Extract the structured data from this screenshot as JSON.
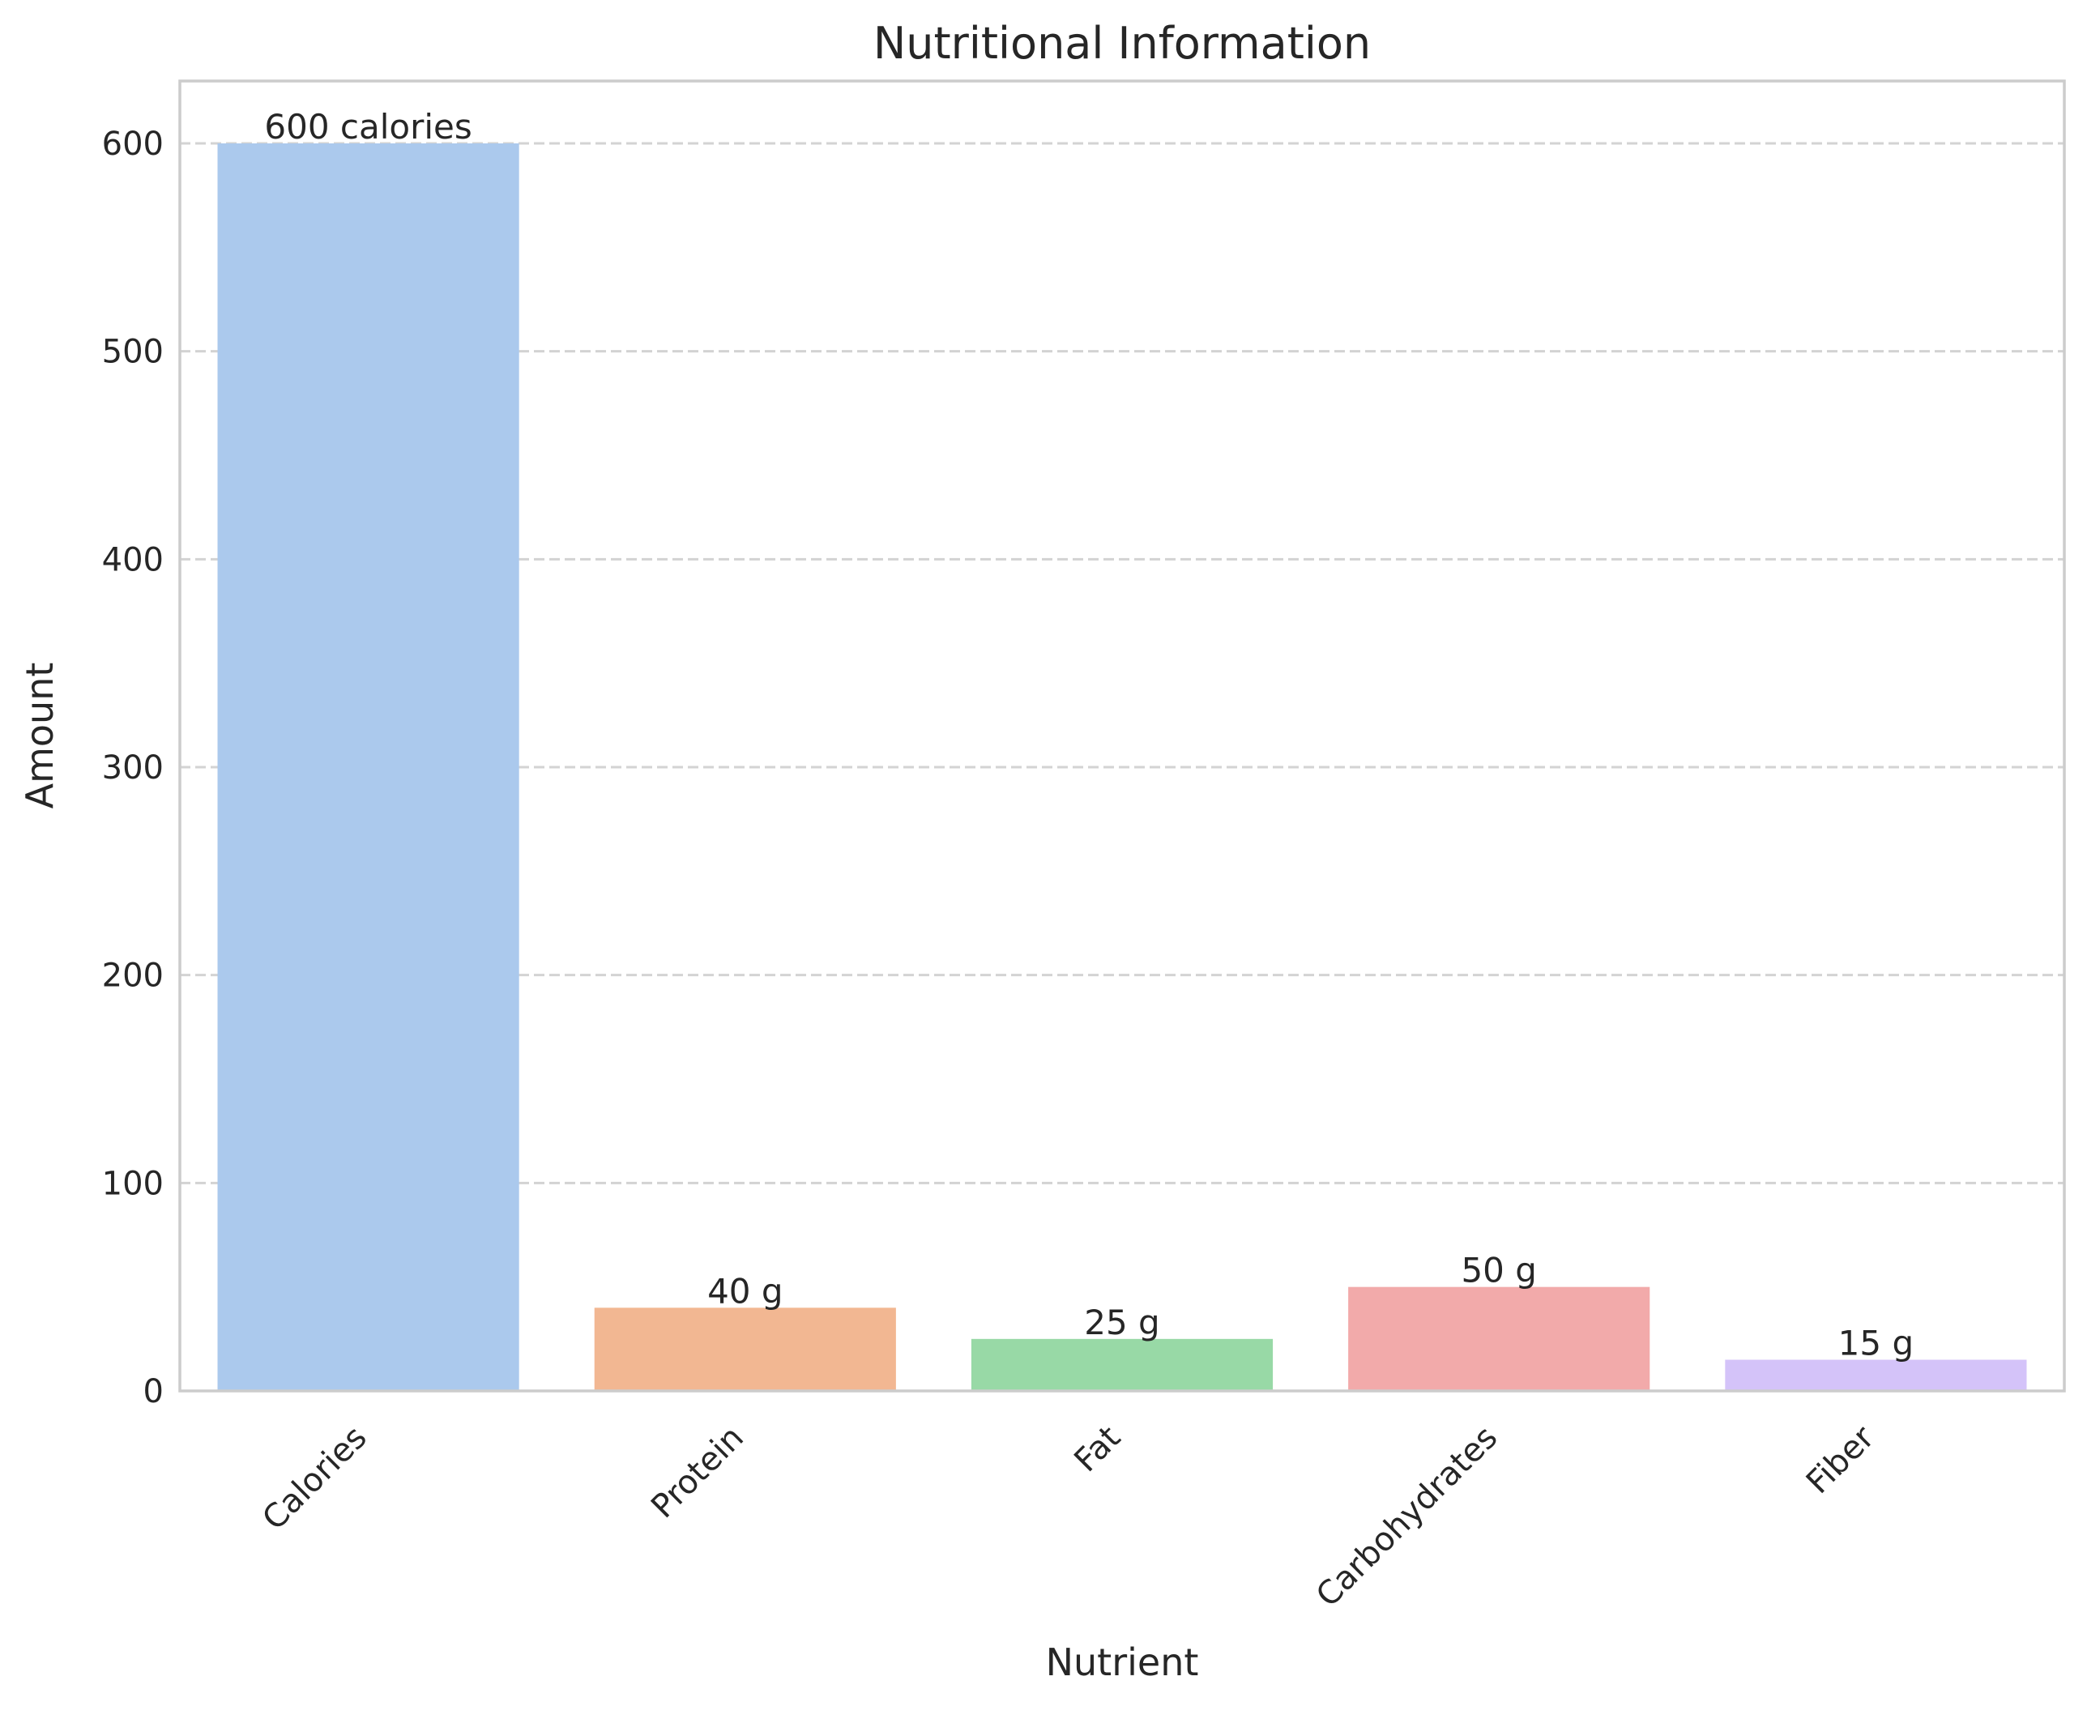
{
  "chart_data": {
    "type": "bar",
    "title": "Nutritional Information",
    "xlabel": "Nutrient",
    "ylabel": "Amount",
    "categories": [
      "Calories",
      "Protein",
      "Fat",
      "Carbohydrates",
      "Fiber"
    ],
    "values": [
      600,
      40,
      25,
      50,
      15
    ],
    "value_labels": [
      "600 calories",
      "40 g",
      "25 g",
      "50 g",
      "15 g"
    ],
    "colors": [
      "#abc9ed",
      "#f2b792",
      "#98d9a6",
      "#f2aaaa",
      "#d4c3f9"
    ],
    "ylim": [
      0,
      630
    ],
    "yticks": [
      0,
      100,
      200,
      300,
      400,
      500,
      600
    ],
    "grid": "y-dashed",
    "legend": "none"
  }
}
